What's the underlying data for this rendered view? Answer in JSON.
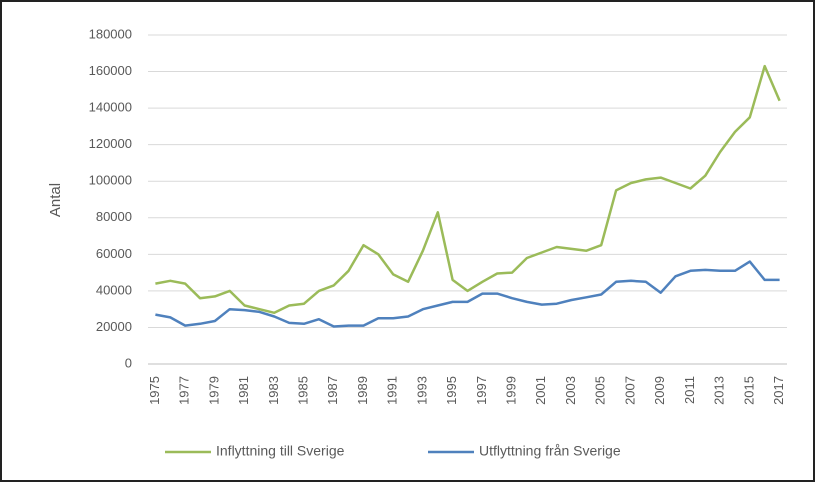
{
  "chart_data": {
    "type": "line",
    "y_label": "Antal",
    "categories": [
      "1975",
      null,
      "1977",
      null,
      "1979",
      null,
      "1981",
      null,
      "1983",
      null,
      "1985",
      null,
      "1987",
      null,
      "1989",
      null,
      "1991",
      null,
      "1993",
      null,
      "1995",
      null,
      "1997",
      null,
      "1999",
      null,
      "2001",
      null,
      "2003",
      null,
      "2005",
      null,
      "2007",
      null,
      "2009",
      null,
      "2011",
      null,
      "2013",
      null,
      "2015",
      null,
      "2017"
    ],
    "series": [
      {
        "name": "Inflyttning till Sverige",
        "color": "#9bbb59",
        "values": [
          44000,
          45500,
          44000,
          36000,
          37000,
          40000,
          32000,
          30000,
          28000,
          32000,
          33000,
          40000,
          43000,
          51000,
          65000,
          60000,
          49000,
          45000,
          62000,
          83000,
          46000,
          40000,
          45000,
          49500,
          50000,
          58000,
          61000,
          64000,
          63000,
          62000,
          65000,
          95000,
          99000,
          101000,
          102000,
          99000,
          96000,
          103000,
          116000,
          127000,
          135000,
          163000,
          144000
        ]
      },
      {
        "name": "Utflyttning från Sverige",
        "color": "#4f81bd",
        "values": [
          27000,
          25500,
          21000,
          22000,
          23500,
          30000,
          29500,
          28500,
          26000,
          22500,
          22000,
          24500,
          20500,
          21000,
          21000,
          25000,
          25000,
          26000,
          30000,
          32000,
          34000,
          34000,
          38500,
          38500,
          36000,
          34000,
          32500,
          33000,
          35000,
          36500,
          38000,
          45000,
          45500,
          45000,
          39000,
          48000,
          51000,
          51500,
          51000,
          51000,
          56000,
          46000,
          46000
        ]
      }
    ],
    "ylim": [
      0,
      180000
    ],
    "yticks": [
      0,
      20000,
      40000,
      60000,
      80000,
      100000,
      120000,
      140000,
      160000,
      180000
    ],
    "grid": true,
    "legend": "bottom"
  }
}
